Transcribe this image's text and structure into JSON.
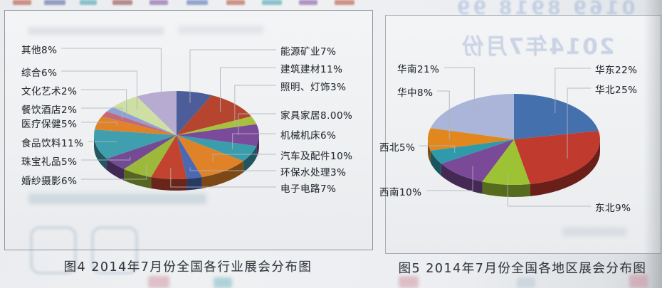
{
  "captions": {
    "figure4": "图4 2014年7月份全国各行业展会分布图",
    "figure5": "图5 2014年7月份全国各地区展会分布图"
  },
  "bleed_through": {
    "mirrored_title": "2014年7月份",
    "top_digits": "0169 8918 99"
  },
  "chart_data": [
    {
      "id": "industry",
      "type": "pie",
      "style": "3d",
      "title": "图4 2014年7月份全国各行业展会分布图",
      "unit": "%",
      "legend_position": "callout-labels-both-sides",
      "slices": [
        {
          "label": "能源矿业",
          "display": "能源矿业7%",
          "value": 7,
          "color": "#4d5d99",
          "side": "right",
          "slot": 0
        },
        {
          "label": "建筑建材",
          "display": "建筑建材11%",
          "value": 11,
          "color": "#b5452f",
          "side": "right",
          "slot": 1
        },
        {
          "label": "照明、灯饰",
          "display": "照明、灯饰3%",
          "value": 3,
          "color": "#a9bf3e",
          "side": "right",
          "slot": 2
        },
        {
          "label": "家具家居",
          "display": "家具家居8.00%",
          "value": 8,
          "color": "#7b4b9b",
          "side": "right",
          "slot": 3
        },
        {
          "label": "机械机床",
          "display": "机械机床6%",
          "value": 6,
          "color": "#3b9dab",
          "side": "right",
          "slot": 4
        },
        {
          "label": "汽车及配件",
          "display": "汽车及配件10%",
          "value": 10,
          "color": "#e08228",
          "side": "right",
          "slot": 5
        },
        {
          "label": "环保水处理",
          "display": "环保水处理3%",
          "value": 3,
          "color": "#4a69b2",
          "side": "right",
          "slot": 6
        },
        {
          "label": "电子电路",
          "display": "电子电路7%",
          "value": 7,
          "color": "#c14330",
          "side": "right",
          "slot": 7
        },
        {
          "label": "婚纱摄影",
          "display": "婚纱摄影6%",
          "value": 6,
          "color": "#9cb93a",
          "side": "left",
          "slot": 7
        },
        {
          "label": "珠宝礼品",
          "display": "珠宝礼品5%",
          "value": 5,
          "color": "#744a95",
          "side": "left",
          "slot": 6
        },
        {
          "label": "食品饮料",
          "display": "食品饮料11%",
          "value": 11,
          "color": "#3f9fae",
          "side": "left",
          "slot": 5
        },
        {
          "label": "医疗保健",
          "display": "医疗保健5%",
          "value": 5,
          "color": "#e08228",
          "side": "left",
          "slot": 4
        },
        {
          "label": "餐饮酒店",
          "display": "餐饮酒店2%",
          "value": 2,
          "color": "#c4687c",
          "side": "left",
          "slot": 3
        },
        {
          "label": "文化艺术",
          "display": "文化艺术2%",
          "value": 2,
          "color": "#8fa2d4",
          "side": "left",
          "slot": 2
        },
        {
          "label": "综合",
          "display": "综合6%",
          "value": 6,
          "color": "#cedfa3",
          "side": "left",
          "slot": 1
        },
        {
          "label": "其他",
          "display": "其他8%",
          "value": 8,
          "color": "#b7abd1",
          "side": "left",
          "slot": 0
        }
      ]
    },
    {
      "id": "region",
      "type": "pie",
      "style": "3d",
      "title": "图5 2014年7月份全国各地区展会分布图",
      "unit": "%",
      "legend_position": "callout-labels-both-sides",
      "slices": [
        {
          "label": "华东",
          "display": "华东22%",
          "value": 22,
          "color": "#4470ad",
          "side": "right",
          "slot": 0
        },
        {
          "label": "华北",
          "display": "华北25%",
          "value": 25,
          "color": "#c03b2d",
          "side": "right",
          "slot": 1
        },
        {
          "label": "东北",
          "display": "东北9%",
          "value": 9,
          "color": "#9dc234",
          "side": "right",
          "slot": 2
        },
        {
          "label": "西南",
          "display": "西南10%",
          "value": 10,
          "color": "#7a4a98",
          "side": "left",
          "slot": 3
        },
        {
          "label": "西北",
          "display": "西北5%",
          "value": 5,
          "color": "#2f9aaa",
          "side": "left",
          "slot": 2
        },
        {
          "label": "华中",
          "display": "华中8%",
          "value": 8,
          "color": "#e2861e",
          "side": "left",
          "slot": 1
        },
        {
          "label": "华南",
          "display": "华南21%",
          "value": 21,
          "color": "#aab5d9",
          "side": "left",
          "slot": 0
        }
      ]
    }
  ]
}
